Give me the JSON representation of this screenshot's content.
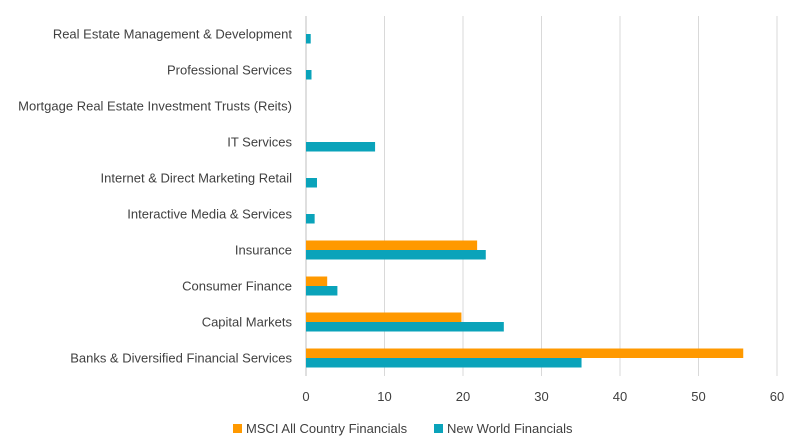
{
  "chart_data": {
    "type": "bar",
    "orientation": "horizontal",
    "title": "",
    "xlabel": "",
    "ylabel": "",
    "xlim": [
      0,
      60
    ],
    "xticks": [
      0,
      10,
      20,
      30,
      40,
      50,
      60
    ],
    "grid": true,
    "legend_position": "bottom",
    "categories": [
      "Real Estate Management & Development",
      "Professional Services",
      "Mortgage Real Estate Investment Trusts (Reits)",
      "IT Services",
      "Internet & Direct Marketing Retail",
      "Interactive Media & Services",
      "Insurance",
      "Consumer Finance",
      "Capital Markets",
      "Banks & Diversified Financial Services"
    ],
    "series": [
      {
        "name": "MSCI All Country Financials",
        "color": "#FF9900",
        "values": [
          0,
          0,
          0,
          0,
          0,
          0,
          21.8,
          2.7,
          19.8,
          55.7
        ]
      },
      {
        "name": "New World Financials",
        "color": "#0AA3BA",
        "values": [
          0.6,
          0.7,
          0,
          8.8,
          1.4,
          1.1,
          22.9,
          4.0,
          25.2,
          35.1
        ]
      }
    ]
  }
}
